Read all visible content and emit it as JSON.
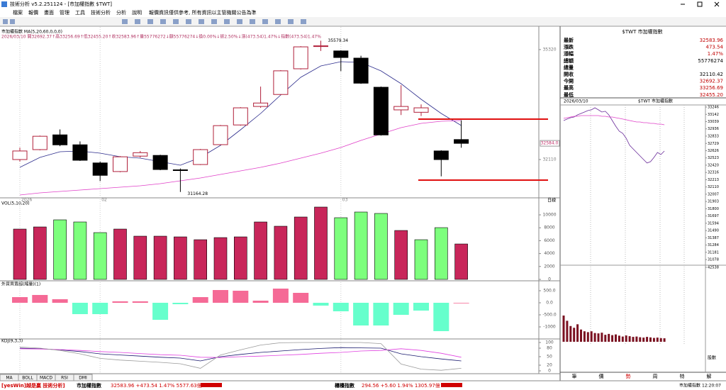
{
  "window": {
    "title": "技術分析 v5.2.251124 - [市加權指數 $TWT]",
    "menu": [
      "檔案",
      "報價",
      "畫面",
      "管理",
      "工具",
      "技術分析",
      "分析",
      "說明"
    ],
    "notice": "報價資訊僅供參考, 所有資訊以主管機關公告為準"
  },
  "chart_data": [
    {
      "type": "candlestick",
      "title": "市加權指數 MA(5,20,60,0,0,0)",
      "info": "2026/03/10 開32692.37↑高33256.69↑低32455.20↑收32583.96↑量55776272↓額55776274↓換0.00%↓振2.50%↓漲(473.54)1.47%↓指數(473.54)1.47%",
      "period": "日線",
      "categories": [
        "2026",
        null,
        null,
        null,
        "02",
        null,
        null,
        null,
        null,
        null,
        null,
        null,
        null,
        null,
        null,
        null,
        "03",
        null,
        null,
        null,
        null,
        null,
        null
      ],
      "open": [
        32110,
        32400,
        32830,
        32540,
        32010,
        31760,
        32210,
        32230,
        31810,
        31965,
        32545,
        33120,
        33660,
        34010,
        34760,
        35420,
        35280,
        35070,
        34220,
        33560,
        33490,
        32360,
        32692.37
      ],
      "high": [
        32460,
        32810,
        32990,
        32640,
        32050,
        32210,
        32360,
        32250,
        31850,
        32420,
        33120,
        33640,
        34240,
        34720,
        35420,
        35579.34,
        35300,
        35140,
        34240,
        34280,
        33720,
        32380,
        33256.69
      ],
      "low": [
        32050,
        32380,
        32500,
        32070,
        31480,
        31740,
        32170,
        31800,
        31164.28,
        31950,
        32530,
        33100,
        33620,
        33990,
        34740,
        35280,
        34690,
        34320,
        32810,
        33410,
        33380,
        31620,
        32455.2
      ],
      "close": [
        32360,
        32790,
        32540,
        32090,
        31650,
        32190,
        32310,
        31820,
        31800,
        32400,
        33100,
        33620,
        33760,
        34700,
        35400,
        35430,
        35090,
        34340,
        32830,
        33660,
        33620,
        32110,
        32583.96
      ],
      "up_color": "#b0203a",
      "down_color": "#000000",
      "series": [
        {
          "color": "#2c2c8c",
          "values": [
            31882,
            32172,
            32338,
            32358,
            32296,
            32193,
            32151,
            32048,
            31944,
            32172,
            32524,
            32979,
            33456,
            33994,
            34511,
            34842,
            34967,
            34946,
            34698,
            34325,
            33870,
            33456,
            33104
          ]
        },
        {
          "color": "#e040c8",
          "values": [
            31075,
            31137,
            31179,
            31220,
            31261,
            31303,
            31344,
            31406,
            31489,
            31572,
            31675,
            31779,
            31882,
            32007,
            32151,
            32296,
            32462,
            32669,
            32855,
            33042,
            33166,
            33228,
            33249
          ]
        }
      ],
      "ylim": [
        31013,
        35981
      ],
      "yticks": [
        32110,
        35320
      ],
      "last_label": {
        "value": 32583.96,
        "label": "32584.0"
      },
      "lines": [
        33290,
        31510
      ],
      "line_color": "#e01010"
    },
    {
      "type": "bar",
      "title": "VOL(5,10,20)",
      "values": [
        7800,
        8130,
        9230,
        8900,
        7250,
        7800,
        6700,
        6700,
        6590,
        6150,
        6480,
        6590,
        8900,
        8240,
        9670,
        11210,
        9560,
        10440,
        10220,
        7580,
        6150,
        8020,
        5490
      ],
      "colors": [
        "#c8265a",
        "#c8265a",
        "#7dff7d",
        "#7dff7d",
        "#7dff7d",
        "#c8265a",
        "#c8265a",
        "#c8265a",
        "#c8265a",
        "#c8265a",
        "#c8265a",
        "#c8265a",
        "#c8265a",
        "#c8265a",
        "#c8265a",
        "#c8265a",
        "#7dff7d",
        "#7dff7d",
        "#7dff7d",
        "#c8265a",
        "#7dff7d",
        "#7dff7d",
        "#c8265a"
      ],
      "ylim": [
        0,
        11430
      ],
      "yticks": [
        0,
        2000,
        4000,
        6000,
        8000,
        10000
      ]
    },
    {
      "type": "bar",
      "title": "外資買賣超(縮量)(1)",
      "values": [
        235,
        324,
        147,
        -470,
        -470,
        59,
        59,
        -706,
        -59,
        235,
        529,
        500,
        88,
        588,
        412,
        -118,
        -353,
        -941,
        -941,
        -500,
        -324,
        -1176,
        0
      ],
      "pos_color": "#f56a96",
      "neg_color": "#66ffcc",
      "ylim": [
        -1470,
        794
      ],
      "yticks": [
        {
          "value": -1000,
          "label": "-1000"
        },
        {
          "value": -500,
          "label": "-500.0"
        },
        {
          "value": 0,
          "label": "0.0"
        },
        {
          "value": 500,
          "label": "500.0"
        }
      ]
    },
    {
      "type": "line",
      "title": "KDJ(9,3,3)",
      "series": [
        {
          "color": "#1a1a6e",
          "values": [
            80,
            78,
            74,
            68,
            60,
            56,
            52,
            48,
            45,
            35,
            50,
            58,
            65,
            70,
            75,
            79,
            82,
            81,
            80,
            60,
            50,
            42,
            35
          ]
        },
        {
          "color": "#e040e0",
          "values": [
            78,
            77,
            75,
            72,
            68,
            65,
            61,
            57,
            55,
            48,
            47,
            50,
            52,
            55,
            58,
            62,
            65,
            70,
            72,
            78,
            72,
            62,
            48
          ]
        },
        {
          "color": "#9a9a9a",
          "values": [
            84,
            80,
            72,
            60,
            44,
            38,
            34,
            30,
            25,
            9,
            56,
            74,
            91,
            99,
            100,
            100,
            100,
            100,
            96,
            24,
            6,
            2,
            9
          ]
        }
      ],
      "ylim": [
        0,
        100
      ],
      "yticks": [
        0,
        20,
        50,
        80,
        100
      ]
    },
    {
      "type": "line",
      "title": "$TWT 市加權指數",
      "date": "2026/03/10",
      "series": [
        {
          "color": "#6a2c9a",
          "values": [
            33054,
            33075,
            33095,
            33105,
            33135,
            33155,
            33175,
            33196,
            33206,
            33236,
            33206,
            33175,
            33186,
            33135,
            33054,
            32974,
            32903,
            32873,
            32802,
            32702,
            32651,
            32601,
            32550,
            32500,
            32450,
            32470,
            32530,
            32601,
            32571,
            32621
          ]
        },
        {
          "color": "#e040c8",
          "values": [
            33085,
            33095,
            33105,
            33115,
            33115,
            33125,
            33125,
            33125,
            33125,
            33125,
            33125,
            33115,
            33115,
            33105,
            33105,
            33095,
            33085,
            33075,
            33065,
            33054,
            33044,
            33034,
            33034,
            33024,
            33024,
            33014,
            33014,
            33004,
            33004,
            32994
          ]
        }
      ],
      "ylim": [
        31038,
        33276
      ],
      "yticks": [
        31078,
        31181,
        31284,
        31387,
        31490,
        31594,
        31697,
        31800,
        31903,
        32007,
        32110,
        32213,
        32316,
        32420,
        32523,
        32626,
        32729,
        32833,
        32936,
        33039,
        33142,
        33246
      ]
    },
    {
      "type": "bar",
      "values": [
        15000,
        12000,
        9000,
        8000,
        10000,
        7000,
        6000,
        5500,
        6000,
        5000,
        4800,
        5200,
        4000,
        4500,
        3800,
        4200,
        3500,
        3000,
        3600,
        3200,
        2800,
        3000,
        2600,
        2400,
        2800,
        2500,
        2200,
        2400,
        2100,
        2000
      ],
      "color": "#7a1020",
      "ylim": [
        0,
        42538
      ],
      "yticks": [
        42538
      ],
      "unit": "股數"
    }
  ],
  "quote": {
    "title": "$TWT 市加權指數",
    "rows": [
      {
        "label": "最新",
        "value": "32583.96",
        "color": "#c00000"
      },
      {
        "label": "漲跌",
        "value": "473.54",
        "color": "#c00000"
      },
      {
        "label": "漲幅",
        "value": "1.47%",
        "color": "#c00000"
      },
      {
        "label": "總額",
        "value": "55776274",
        "color": "#000000"
      },
      {
        "label": "總量"
      },
      {
        "label": "開收",
        "value": "32110.42",
        "color": "#000000"
      },
      {
        "label": "今開",
        "value": "32692.37",
        "color": "#c00000"
      },
      {
        "label": "最高",
        "value": "33256.69",
        "color": "#c00000"
      },
      {
        "label": "最低",
        "value": "32455.20",
        "color": "#c00000"
      }
    ]
  },
  "tabs": [
    "MA",
    "BOLL",
    "MACD",
    "RSI",
    "DMI"
  ],
  "right_tabs": [
    "筆",
    "價",
    "勢",
    "周",
    "特",
    "解"
  ],
  "status": {
    "brand": "[yesWin]越是贏 技術分析]",
    "index1": "市加權指數",
    "quote1": "32583.96 +473.54 1.47% 5577.63億",
    "index2": "櫃檯指數",
    "quote2": "294.56 +5.60 1.94% 1305.97億",
    "right_name": "市加權指數",
    "time": "12:20:07"
  }
}
